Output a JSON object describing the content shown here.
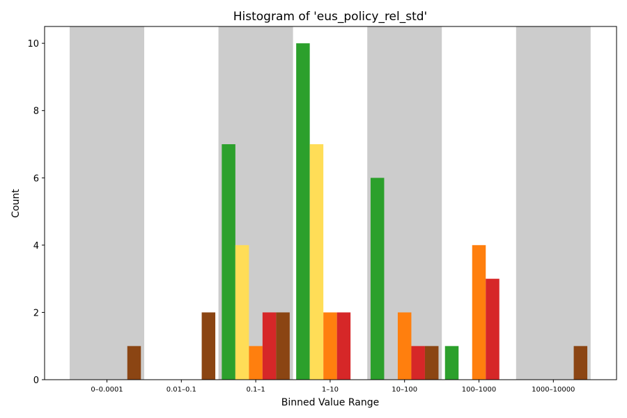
{
  "chart_data": {
    "type": "bar",
    "title": "Histogram of 'eus_policy_rel_std'",
    "xlabel": "Binned Value Range",
    "ylabel": "Count",
    "ylim": [
      0,
      10.5
    ],
    "yticks": [
      0,
      2,
      4,
      6,
      8,
      10
    ],
    "grid": false,
    "legend": "none",
    "categories": [
      "0–0.0001",
      "0.01–0.1",
      "0.1–1",
      "1–10",
      "10–100",
      "100–1000",
      "1000–10000"
    ],
    "shaded_categories": [
      "0–0.0001",
      "0.1–1",
      "10–100",
      "1000–10000"
    ],
    "shade_color": "#cccccc",
    "series": [
      {
        "color": "#2ca02c",
        "values": [
          0,
          0,
          7,
          10,
          6,
          1,
          0
        ]
      },
      {
        "color": "#ffdd57",
        "values": [
          0,
          0,
          4,
          7,
          0,
          0,
          0
        ]
      },
      {
        "color": "#ff7f0e",
        "values": [
          0,
          0,
          1,
          2,
          2,
          4,
          0
        ]
      },
      {
        "color": "#d62728",
        "values": [
          0,
          0,
          2,
          2,
          1,
          3,
          0
        ]
      },
      {
        "color": "#8b4513",
        "values": [
          1,
          2,
          2,
          0,
          1,
          0,
          1
        ]
      }
    ]
  }
}
